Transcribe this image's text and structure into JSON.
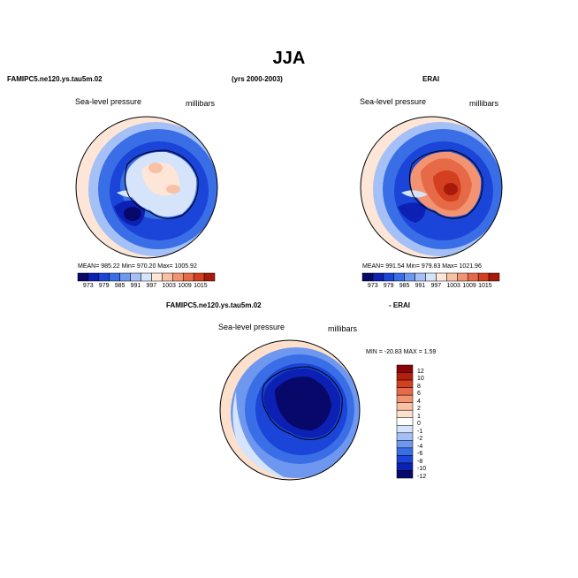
{
  "title": "JJA",
  "header": {
    "left": "FAMIPC5.ne120.ys.tau5m.02",
    "center": "(yrs 2000-2003)",
    "right": "ERAI",
    "bottom_left": "FAMIPC5.ne120.ys.tau5m.02",
    "bottom_right": "- ERAI"
  },
  "panels": [
    {
      "label": "Sea-level pressure",
      "units": "millibars",
      "stats": "MEAN= 985.22   Min= 970.20   Max= 1005.92",
      "colorbar_ticks": [
        "973",
        "979",
        "985",
        "991",
        "997",
        "1003",
        "1009",
        "1015"
      ]
    },
    {
      "label": "Sea-level pressure",
      "units": "millibars",
      "stats": "MEAN= 991.54   Min= 979.83   Max= 1021.96",
      "colorbar_ticks": [
        "973",
        "979",
        "985",
        "991",
        "997",
        "1003",
        "1009",
        "1015"
      ]
    },
    {
      "label": "Sea-level pressure",
      "units": "millibars",
      "stats": "MIN = -20.83  MAX =   1.59",
      "colorbar_ticks": [
        "12",
        "10",
        "8",
        "6",
        "4",
        "2",
        "1",
        "0",
        "-1",
        "-2",
        "-4",
        "-6",
        "-8",
        "-10",
        "-12"
      ]
    }
  ],
  "colors": {
    "abs_scale": [
      "#08086b",
      "#0c20b4",
      "#1a45d8",
      "#3a6ee6",
      "#6e98ef",
      "#a4c0f6",
      "#d6e4fb",
      "#fde6d8",
      "#f8c0a4",
      "#f29472",
      "#e76a48",
      "#d4401f",
      "#a81a0c"
    ],
    "diff_scale": [
      "#08086b",
      "#0c20b4",
      "#1a45d8",
      "#3a6ee6",
      "#6e98ef",
      "#a4c0f6",
      "#d6e4fb",
      "#ffffff",
      "#fde0cc",
      "#f8c0a4",
      "#f29472",
      "#e76a48",
      "#d4401f",
      "#b51e0e",
      "#8a0606"
    ]
  }
}
